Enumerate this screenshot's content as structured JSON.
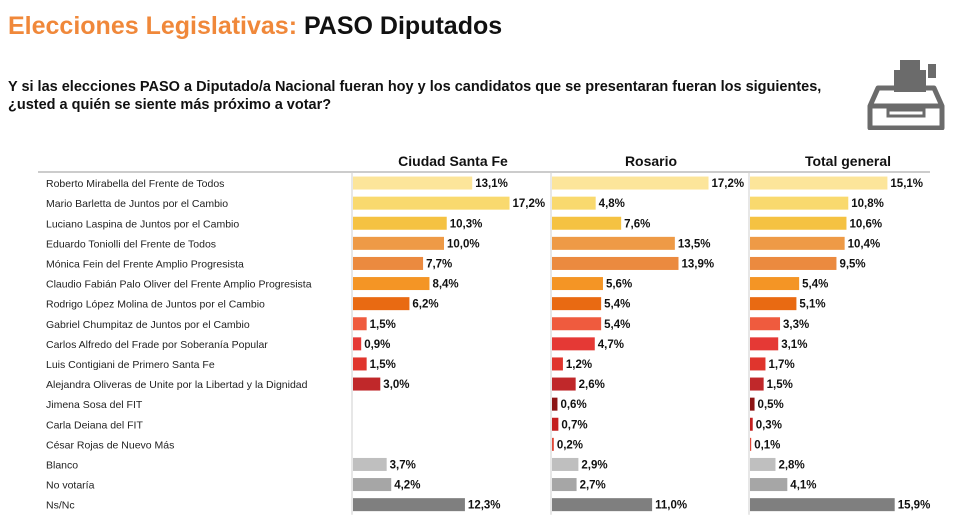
{
  "header": {
    "title_part1": "Elecciones Legislativas:",
    "title_part2": "PASO Diputados",
    "question": "Y si las elecciones PASO a Diputado/a Nacional fueran hoy y los candidatos que se presentaran fueran los siguientes, ¿usted a quién se siente más próximo a votar?",
    "icon": "ballot-box-vote-icon"
  },
  "chart_data": {
    "type": "bar",
    "orientation": "horizontal",
    "value_format": "percent-comma-1-decimal",
    "categories": [
      "Roberto Mirabella del Frente de Todos",
      "Mario Barletta de Juntos por el Cambio",
      "Luciano Laspina de Juntos por el Cambio",
      "Eduardo Toniolli del Frente de Todos",
      "Mónica Fein del Frente Amplio Progresista",
      "Claudio Fabián Palo Oliver del Frente Amplio Progresista",
      "Rodrigo López Molina de Juntos por el Cambio",
      "Gabriel Chumpitaz de Juntos por el Cambio",
      "Carlos Alfredo del Frade por Soberanía Popular",
      "Luis Contigiani de Primero Santa Fe",
      "Alejandra Oliveras de Unite por la Libertad y la Dignidad",
      "Jimena Sosa del FIT",
      "Carla Deiana del FIT",
      "César Rojas de Nuevo Más",
      "Blanco",
      "No votaría",
      "Ns/Nc"
    ],
    "category_colors": [
      "#FCE59A",
      "#F9D96E",
      "#F5C242",
      "#EE9A46",
      "#EB8A3F",
      "#F49525",
      "#E96A12",
      "#EF5B3E",
      "#E53935",
      "#E0352D",
      "#C0282A",
      "#8C1414",
      "#C42020",
      "#E04A3A",
      "#BFBFBF",
      "#A6A6A6",
      "#7F7F7F"
    ],
    "series": [
      {
        "name": "Ciudad Santa Fe",
        "values": [
          13.1,
          17.2,
          10.3,
          10.0,
          7.7,
          8.4,
          6.2,
          1.5,
          0.9,
          1.5,
          3.0,
          null,
          null,
          null,
          3.7,
          4.2,
          12.3
        ]
      },
      {
        "name": "Rosario",
        "values": [
          17.2,
          4.8,
          7.6,
          13.5,
          13.9,
          5.6,
          5.4,
          5.4,
          4.7,
          1.2,
          2.6,
          0.6,
          0.7,
          0.2,
          2.9,
          2.7,
          11.0
        ]
      },
      {
        "name": "Total general",
        "values": [
          15.1,
          10.8,
          10.6,
          10.4,
          9.5,
          5.4,
          5.1,
          3.3,
          3.1,
          1.7,
          1.5,
          0.5,
          0.3,
          0.1,
          2.8,
          4.1,
          15.9
        ]
      }
    ],
    "legend": "none",
    "grid": false
  }
}
